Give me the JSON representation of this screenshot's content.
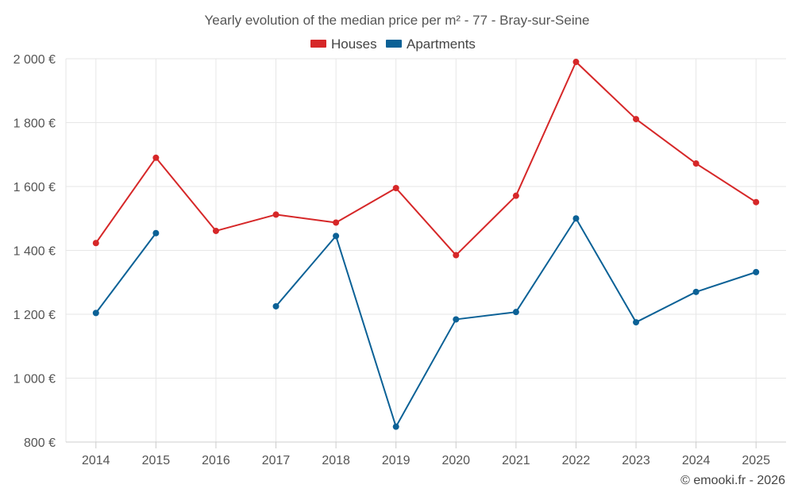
{
  "chart_data": {
    "type": "line",
    "title": "Yearly evolution of the median price per m² - 77 - Bray-sur-Seine",
    "categories": [
      "2014",
      "2015",
      "2016",
      "2017",
      "2018",
      "2019",
      "2020",
      "2021",
      "2022",
      "2023",
      "2024",
      "2025"
    ],
    "series": [
      {
        "name": "Houses",
        "color": "#d62728",
        "values": [
          1423,
          1690,
          1461,
          1512,
          1487,
          1595,
          1385,
          1571,
          1990,
          1811,
          1672,
          1551
        ]
      },
      {
        "name": "Apartments",
        "color": "#0b6196",
        "values": [
          1204,
          1454,
          null,
          1225,
          1445,
          848,
          1184,
          1207,
          1500,
          1175,
          1270,
          1332
        ]
      }
    ],
    "ylim": [
      800,
      2000
    ],
    "yticks": [
      800,
      1000,
      1200,
      1400,
      1600,
      1800,
      2000
    ],
    "ytick_labels": [
      "800 €",
      "1 000 €",
      "1 200 €",
      "1 400 €",
      "1 600 €",
      "1 800 €",
      "2 000 €"
    ],
    "legend": "top-center",
    "grid": true,
    "xlabel": "",
    "ylabel": ""
  },
  "footer": "© emooki.fr - 2026"
}
